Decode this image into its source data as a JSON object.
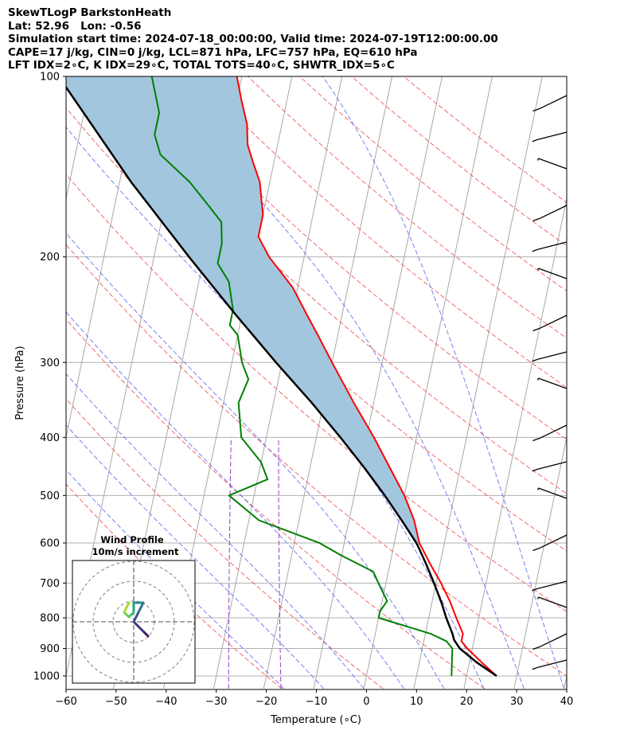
{
  "header": {
    "line1": "SkewTLogP BarkstonHeath",
    "line2": "Lat: 52.96   Lon: -0.56",
    "line3": "Simulation start time: 2024-07-18_00:00:00, Valid time: 2024-07-19T12:00:00.00",
    "line4": "CAPE=17 j/kg, CIN=0 j/kg, LCL=871 hPa, LFC=757 hPa, EQ=610 hPa",
    "line5": "LFT IDX=2∘C, K IDX=29∘C, TOTAL TOTS=40∘C, SHWTR_IDX=5∘C"
  },
  "chart_data": {
    "type": "line",
    "title": "",
    "xlabel": "Temperature (∘C)",
    "ylabel": "Pressure (hPa)",
    "xlim": [
      -60,
      40
    ],
    "ylim_hpa": [
      1050,
      100
    ],
    "y_scale": "log",
    "skew": "skew-T log-P",
    "grid": true,
    "x_ticks": [
      -60,
      -50,
      -40,
      -30,
      -20,
      -10,
      0,
      10,
      20,
      30,
      40
    ],
    "x_tick_labels": [
      "−60",
      "−50",
      "−40",
      "−30",
      "−20",
      "−10",
      "0",
      "10",
      "20",
      "30",
      "40"
    ],
    "y_ticks": [
      1000,
      900,
      800,
      700,
      600,
      500,
      400,
      300,
      200,
      100
    ],
    "y_tick_labels": [
      "1000",
      "900",
      "800",
      "700",
      "600",
      "500",
      "400",
      "300",
      "200",
      "100"
    ],
    "series": [
      {
        "role": "temperature",
        "color": "#ff0000",
        "points": [
          [
            1000,
            26
          ],
          [
            950,
            22.5
          ],
          [
            900,
            19
          ],
          [
            875,
            17.5
          ],
          [
            850,
            17.5
          ],
          [
            800,
            15.5
          ],
          [
            750,
            13.5
          ],
          [
            700,
            11
          ],
          [
            650,
            8
          ],
          [
            600,
            5
          ],
          [
            550,
            3
          ],
          [
            500,
            0
          ],
          [
            450,
            -4
          ],
          [
            400,
            -8.5
          ],
          [
            350,
            -14
          ],
          [
            300,
            -20
          ],
          [
            270,
            -24
          ],
          [
            250,
            -27
          ],
          [
            225,
            -31
          ],
          [
            200,
            -37
          ],
          [
            185,
            -40
          ],
          [
            170,
            -40
          ],
          [
            160,
            -41
          ],
          [
            150,
            -42
          ],
          [
            140,
            -44
          ],
          [
            130,
            -46
          ],
          [
            120,
            -47
          ],
          [
            110,
            -49
          ],
          [
            100,
            -51
          ]
        ]
      },
      {
        "role": "dewpoint",
        "color": "#008000",
        "points": [
          [
            1000,
            17
          ],
          [
            950,
            16.5
          ],
          [
            900,
            16
          ],
          [
            875,
            14.5
          ],
          [
            850,
            11
          ],
          [
            800,
            0
          ],
          [
            780,
            0
          ],
          [
            750,
            1
          ],
          [
            700,
            -1.5
          ],
          [
            670,
            -3
          ],
          [
            630,
            -10
          ],
          [
            600,
            -15
          ],
          [
            550,
            -28
          ],
          [
            500,
            -35
          ],
          [
            470,
            -28
          ],
          [
            440,
            -30
          ],
          [
            400,
            -35
          ],
          [
            350,
            -37
          ],
          [
            320,
            -36
          ],
          [
            300,
            -38
          ],
          [
            270,
            -40
          ],
          [
            260,
            -42
          ],
          [
            245,
            -42
          ],
          [
            220,
            -44
          ],
          [
            205,
            -47
          ],
          [
            190,
            -47
          ],
          [
            175,
            -48
          ],
          [
            165,
            -51
          ],
          [
            150,
            -56
          ],
          [
            135,
            -63
          ],
          [
            125,
            -65
          ],
          [
            115,
            -65
          ],
          [
            100,
            -68
          ]
        ]
      },
      {
        "role": "parcel",
        "color": "#000000",
        "points": [
          [
            1000,
            26
          ],
          [
            950,
            21.5
          ],
          [
            900,
            17.5
          ],
          [
            871,
            16
          ],
          [
            850,
            15.4
          ],
          [
            800,
            13.5
          ],
          [
            757,
            12.0
          ],
          [
            700,
            9.6
          ],
          [
            650,
            7.2
          ],
          [
            610,
            5.0
          ],
          [
            600,
            4.4
          ],
          [
            550,
            0.5
          ],
          [
            500,
            -3.9
          ],
          [
            450,
            -9.1
          ],
          [
            400,
            -15.2
          ],
          [
            350,
            -22.4
          ],
          [
            300,
            -31.2
          ],
          [
            250,
            -41.2
          ],
          [
            200,
            -53.0
          ],
          [
            150,
            -67.7
          ],
          [
            100,
            -86.6
          ]
        ]
      }
    ],
    "cape_region_color": "#a3c6df",
    "wind_barbs_side": "right",
    "wind_inset": {
      "title": "Wind Profile",
      "subtitle": "10m/s increment",
      "rings": 3,
      "hodograph_u": [
        3,
        2,
        0,
        1,
        2,
        0,
        0,
        -1,
        -2,
        -1
      ],
      "hodograph_v": [
        -3,
        -2,
        0,
        2,
        4,
        4,
        2,
        1,
        2,
        4
      ]
    }
  }
}
